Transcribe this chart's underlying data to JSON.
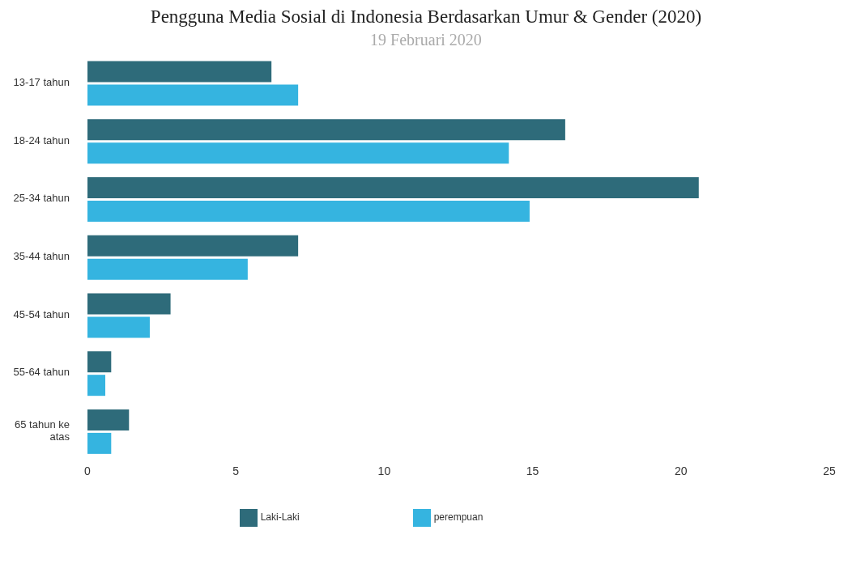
{
  "chart_data": {
    "type": "bar",
    "orientation": "horizontal",
    "title": "Pengguna Media Sosial di Indonesia Berdasarkan Umur & Gender (2020)",
    "subtitle": "19 Februari 2020",
    "categories": [
      "13-17 tahun",
      "18-24 tahun",
      "25-34 tahun",
      "35-44 tahun",
      "45-54 tahun",
      "55-64 tahun",
      "65 tahun ke atas"
    ],
    "series": [
      {
        "name": "Laki-Laki",
        "color": "#2e6b7a",
        "values": [
          6.2,
          16.1,
          20.6,
          7.1,
          2.8,
          0.8,
          1.4
        ]
      },
      {
        "name": "perempuan",
        "color": "#35b4e0",
        "values": [
          7.1,
          14.2,
          14.9,
          5.4,
          2.1,
          0.6,
          0.8
        ]
      }
    ],
    "xlim": [
      0,
      25
    ],
    "xticks": [
      0,
      5,
      10,
      15,
      20,
      25
    ],
    "legend": "bottom"
  }
}
